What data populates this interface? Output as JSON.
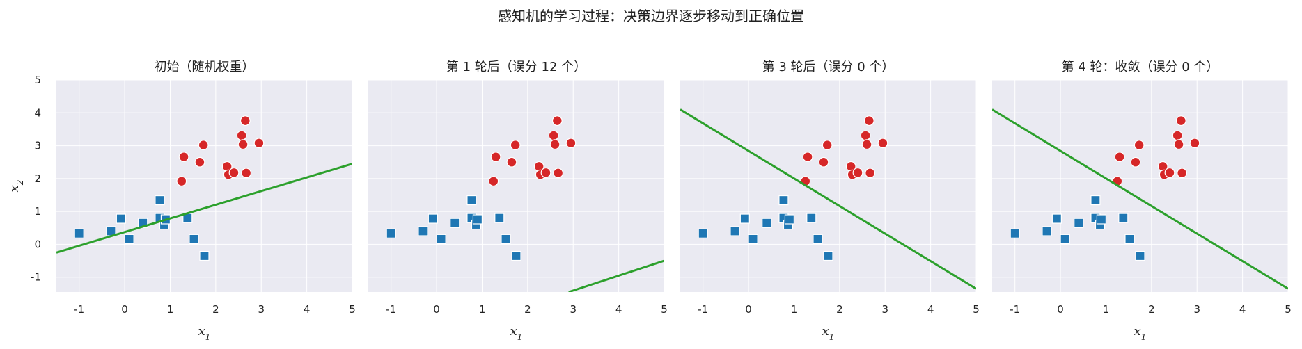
{
  "suptitle": "感知机的学习过程：决策边界逐步移动到正确位置",
  "colors": {
    "background": "#EAEAF2",
    "grid": "#FFFFFF",
    "class_neg": "#1F77B4",
    "class_pos": "#D62728",
    "boundary": "#2CA02C"
  },
  "chart_data": [
    {
      "type": "scatter",
      "title": "初始（随机权重）",
      "xlabel": "x",
      "xlabel_sub": "1",
      "ylabel": "x",
      "ylabel_sub": "2",
      "xlim": [
        -1.5,
        5
      ],
      "ylim": [
        -1.45,
        5
      ],
      "xticks": [
        "-1",
        "0",
        "1",
        "2",
        "3",
        "4",
        "5"
      ],
      "yticks": [
        "-1",
        "0",
        "1",
        "2",
        "3",
        "4",
        "5"
      ],
      "grid": true,
      "boundary": [
        [
          -1.5,
          -0.25
        ],
        [
          5,
          2.45
        ]
      ]
    },
    {
      "type": "scatter",
      "title": "第 1 轮后（误分 12 个）",
      "xlabel": "x",
      "xlabel_sub": "1",
      "xlim": [
        -1.5,
        5
      ],
      "ylim": [
        -1.45,
        5
      ],
      "xticks": [
        "-1",
        "0",
        "1",
        "2",
        "3",
        "4",
        "5"
      ],
      "grid": true,
      "boundary": [
        [
          2.9,
          -1.45
        ],
        [
          5,
          -0.5
        ]
      ]
    },
    {
      "type": "scatter",
      "title": "第 3 轮后（误分 0 个）",
      "xlabel": "x",
      "xlabel_sub": "1",
      "xlim": [
        -1.5,
        5
      ],
      "ylim": [
        -1.45,
        5
      ],
      "xticks": [
        "-1",
        "0",
        "1",
        "2",
        "3",
        "4",
        "5"
      ],
      "grid": true,
      "boundary": [
        [
          -1.5,
          4.1
        ],
        [
          5,
          -1.35
        ]
      ]
    },
    {
      "type": "scatter",
      "title": "第 4 轮：收敛（误分 0 个）",
      "xlabel": "x",
      "xlabel_sub": "1",
      "xlim": [
        -1.5,
        5
      ],
      "ylim": [
        -1.45,
        5
      ],
      "xticks": [
        "-1",
        "0",
        "1",
        "2",
        "3",
        "4",
        "5"
      ],
      "grid": true,
      "boundary": [
        [
          -1.5,
          4.1
        ],
        [
          5,
          -1.35
        ]
      ]
    }
  ],
  "points": {
    "class_neg": [
      [
        -1.0,
        0.33
      ],
      [
        -0.3,
        0.4
      ],
      [
        -0.08,
        0.78
      ],
      [
        0.1,
        0.16
      ],
      [
        0.4,
        0.65
      ],
      [
        0.77,
        1.34
      ],
      [
        0.77,
        0.8
      ],
      [
        0.87,
        0.6
      ],
      [
        0.9,
        0.76
      ],
      [
        1.38,
        0.8
      ],
      [
        1.52,
        0.16
      ],
      [
        1.75,
        -0.35
      ]
    ],
    "class_pos": [
      [
        1.25,
        1.92
      ],
      [
        1.3,
        2.66
      ],
      [
        1.65,
        2.5
      ],
      [
        1.73,
        3.02
      ],
      [
        2.25,
        2.37
      ],
      [
        2.28,
        2.12
      ],
      [
        2.4,
        2.18
      ],
      [
        2.57,
        3.31
      ],
      [
        2.6,
        3.04
      ],
      [
        2.65,
        3.76
      ],
      [
        2.67,
        2.17
      ],
      [
        2.95,
        3.08
      ]
    ]
  }
}
